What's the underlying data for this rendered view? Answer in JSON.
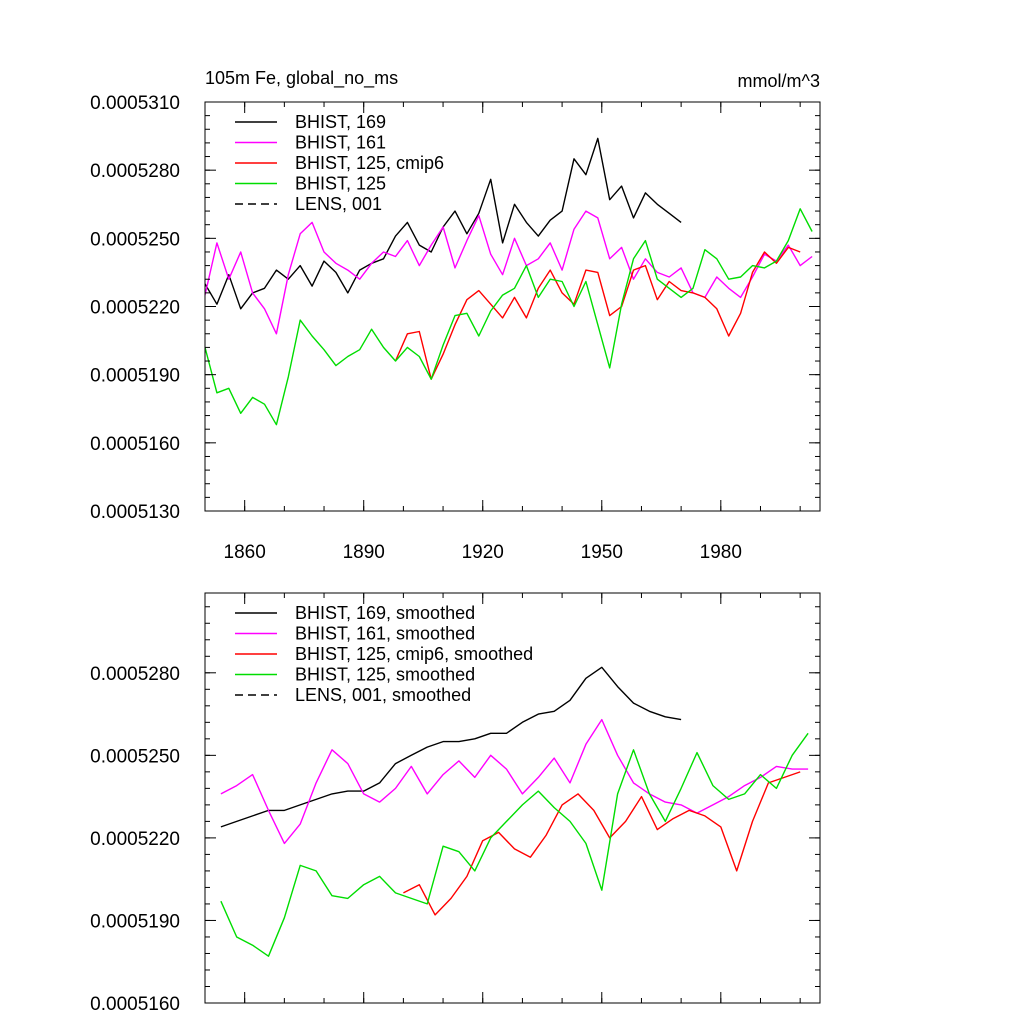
{
  "figure": {
    "background": "#ffffff"
  },
  "chart_data": [
    {
      "type": "line",
      "title": "105m Fe, global_no_ms",
      "units": "mmol/m^3",
      "xlabel": "",
      "ylabel": "",
      "xlim": [
        1850,
        2005
      ],
      "ylim": [
        0.000513,
        0.000531
      ],
      "yticks": [
        0.000513,
        0.000516,
        0.000519,
        0.000522,
        0.000525,
        0.000528,
        0.000531
      ],
      "ytick_labels": [
        "0.0005130",
        "0.0005160",
        "0.0005190",
        "0.0005220",
        "0.0005250",
        "0.0005280",
        "0.0005310"
      ],
      "xticks": [
        1860,
        1890,
        1920,
        1950,
        1980
      ],
      "xtick_labels": [
        "1860",
        "1890",
        "1920",
        "1950",
        "1980"
      ],
      "legend_position": "top-left",
      "series": [
        {
          "name": "BHIST, 169",
          "color": "#000000",
          "dash": "solid",
          "x": [
            1850,
            1853,
            1856,
            1859,
            1862,
            1865,
            1868,
            1871,
            1874,
            1877,
            1880,
            1883,
            1886,
            1889,
            1892,
            1895,
            1898,
            1901,
            1904,
            1907,
            1910,
            1913,
            1916,
            1919,
            1922,
            1925,
            1928,
            1931,
            1934,
            1937,
            1940,
            1943,
            1946,
            1949,
            1952,
            1955,
            1958,
            1961,
            1964,
            1967,
            1970
          ],
          "values": [
            0.000523,
            0.0005221,
            0.0005234,
            0.0005219,
            0.0005226,
            0.0005228,
            0.0005236,
            0.0005232,
            0.0005238,
            0.0005229,
            0.000524,
            0.0005235,
            0.0005226,
            0.0005236,
            0.0005239,
            0.0005241,
            0.0005251,
            0.0005257,
            0.0005247,
            0.0005244,
            0.0005255,
            0.0005262,
            0.0005252,
            0.0005261,
            0.0005276,
            0.0005248,
            0.0005265,
            0.0005257,
            0.0005251,
            0.0005258,
            0.0005262,
            0.0005285,
            0.0005278,
            0.0005294,
            0.0005267,
            0.0005273,
            0.0005259,
            0.000527,
            0.0005265,
            0.0005261,
            0.0005257
          ]
        },
        {
          "name": "BHIST, 161",
          "color": "#ff00ff",
          "dash": "solid",
          "x": [
            1850,
            1853,
            1856,
            1859,
            1862,
            1865,
            1868,
            1871,
            1874,
            1877,
            1880,
            1883,
            1886,
            1889,
            1892,
            1895,
            1898,
            1901,
            1904,
            1907,
            1910,
            1913,
            1916,
            1919,
            1922,
            1925,
            1928,
            1931,
            1934,
            1937,
            1940,
            1943,
            1946,
            1949,
            1952,
            1955,
            1958,
            1961,
            1964,
            1967,
            1970,
            1973,
            1976,
            1979,
            1982,
            1985,
            1988,
            1991,
            1994,
            1997,
            2000,
            2003
          ],
          "values": [
            0.0005225,
            0.0005248,
            0.0005232,
            0.0005244,
            0.0005226,
            0.0005219,
            0.0005208,
            0.0005234,
            0.0005252,
            0.0005257,
            0.0005244,
            0.0005239,
            0.0005236,
            0.0005232,
            0.0005239,
            0.0005244,
            0.0005242,
            0.0005249,
            0.0005238,
            0.0005247,
            0.0005255,
            0.0005237,
            0.0005249,
            0.000526,
            0.0005243,
            0.0005234,
            0.000525,
            0.0005238,
            0.0005241,
            0.0005248,
            0.0005236,
            0.0005254,
            0.0005262,
            0.0005259,
            0.0005241,
            0.0005246,
            0.0005232,
            0.0005241,
            0.0005235,
            0.0005233,
            0.0005237,
            0.0005226,
            0.0005224,
            0.0005233,
            0.0005228,
            0.0005224,
            0.0005233,
            0.0005243,
            0.000524,
            0.0005247,
            0.0005238,
            0.0005242
          ]
        },
        {
          "name": "BHIST, 125, cmip6",
          "color": "#ff0000",
          "dash": "solid",
          "x": [
            1898,
            1901,
            1904,
            1907,
            1910,
            1913,
            1916,
            1919,
            1922,
            1925,
            1928,
            1931,
            1934,
            1937,
            1940,
            1943,
            1946,
            1949,
            1952,
            1955,
            1958,
            1961,
            1964,
            1967,
            1970,
            1973,
            1976,
            1979,
            1982,
            1985,
            1988,
            1991,
            1994,
            1997,
            2000
          ],
          "values": [
            0.0005196,
            0.0005208,
            0.0005209,
            0.0005188,
            0.0005199,
            0.0005212,
            0.0005223,
            0.0005227,
            0.0005221,
            0.0005215,
            0.0005224,
            0.0005215,
            0.0005228,
            0.0005236,
            0.0005226,
            0.0005221,
            0.0005236,
            0.0005235,
            0.0005216,
            0.000522,
            0.0005236,
            0.0005238,
            0.0005223,
            0.0005231,
            0.0005227,
            0.0005226,
            0.0005224,
            0.0005219,
            0.0005207,
            0.0005217,
            0.0005235,
            0.0005244,
            0.0005239,
            0.0005246,
            0.0005244
          ]
        },
        {
          "name": "BHIST, 125",
          "color": "#00dd00",
          "dash": "solid",
          "x": [
            1850,
            1853,
            1856,
            1859,
            1862,
            1865,
            1868,
            1871,
            1874,
            1877,
            1880,
            1883,
            1886,
            1889,
            1892,
            1895,
            1898,
            1901,
            1904,
            1907,
            1910,
            1913,
            1916,
            1919,
            1922,
            1925,
            1928,
            1931,
            1934,
            1937,
            1940,
            1943,
            1946,
            1949,
            1952,
            1955,
            1958,
            1961,
            1964,
            1967,
            1970,
            1973,
            1976,
            1979,
            1982,
            1985,
            1988,
            1991,
            1994,
            1997,
            2000,
            2003
          ],
          "values": [
            0.0005202,
            0.0005182,
            0.0005184,
            0.0005173,
            0.000518,
            0.0005177,
            0.0005168,
            0.0005189,
            0.0005214,
            0.0005207,
            0.0005201,
            0.0005194,
            0.0005198,
            0.0005201,
            0.000521,
            0.0005202,
            0.0005196,
            0.0005202,
            0.0005198,
            0.0005188,
            0.0005203,
            0.0005216,
            0.0005217,
            0.0005207,
            0.0005218,
            0.0005225,
            0.0005228,
            0.0005238,
            0.0005224,
            0.0005232,
            0.0005231,
            0.000522,
            0.0005231,
            0.0005212,
            0.0005193,
            0.0005221,
            0.0005241,
            0.0005249,
            0.0005232,
            0.0005228,
            0.0005224,
            0.0005228,
            0.0005245,
            0.0005241,
            0.0005232,
            0.0005233,
            0.0005238,
            0.0005237,
            0.000524,
            0.0005249,
            0.0005263,
            0.0005253
          ]
        },
        {
          "name": "LENS, 001",
          "color": "#000000",
          "dash": "dashed",
          "x": [],
          "values": []
        }
      ]
    },
    {
      "type": "line",
      "title": "",
      "xlabel": "",
      "ylabel": "",
      "xlim": [
        1850,
        2005
      ],
      "ylim": [
        0.000516,
        0.0005309
      ],
      "yticks": [
        0.000516,
        0.000519,
        0.000522,
        0.000525,
        0.000528
      ],
      "ytick_labels": [
        "0.0005160",
        "0.0005190",
        "0.0005220",
        "0.0005250",
        "0.0005280"
      ],
      "xticks": [
        1860,
        1890,
        1920,
        1950,
        1980
      ],
      "xtick_labels": [],
      "legend_position": "top-left",
      "series": [
        {
          "name": "BHIST, 169, smoothed",
          "color": "#000000",
          "dash": "solid",
          "x": [
            1854,
            1858,
            1862,
            1866,
            1870,
            1874,
            1878,
            1882,
            1886,
            1890,
            1894,
            1898,
            1902,
            1906,
            1910,
            1914,
            1918,
            1922,
            1926,
            1930,
            1934,
            1938,
            1942,
            1946,
            1950,
            1954,
            1958,
            1962,
            1966,
            1970
          ],
          "values": [
            0.0005224,
            0.0005226,
            0.0005228,
            0.000523,
            0.000523,
            0.0005232,
            0.0005234,
            0.0005236,
            0.0005237,
            0.0005237,
            0.000524,
            0.0005247,
            0.000525,
            0.0005253,
            0.0005255,
            0.0005255,
            0.0005256,
            0.0005258,
            0.0005258,
            0.0005262,
            0.0005265,
            0.0005266,
            0.000527,
            0.0005278,
            0.0005282,
            0.0005275,
            0.0005269,
            0.0005266,
            0.0005264,
            0.0005263
          ]
        },
        {
          "name": "BHIST, 161, smoothed",
          "color": "#ff00ff",
          "dash": "solid",
          "x": [
            1854,
            1858,
            1862,
            1866,
            1870,
            1874,
            1878,
            1882,
            1886,
            1890,
            1894,
            1898,
            1902,
            1906,
            1910,
            1914,
            1918,
            1922,
            1926,
            1930,
            1934,
            1938,
            1942,
            1946,
            1950,
            1954,
            1958,
            1962,
            1966,
            1970,
            1974,
            1978,
            1982,
            1986,
            1990,
            1994,
            1998,
            2002
          ],
          "values": [
            0.0005236,
            0.0005239,
            0.0005243,
            0.000523,
            0.0005218,
            0.0005225,
            0.000524,
            0.0005252,
            0.0005247,
            0.0005236,
            0.0005233,
            0.0005238,
            0.0005246,
            0.0005236,
            0.0005243,
            0.0005248,
            0.0005242,
            0.000525,
            0.0005245,
            0.0005236,
            0.0005242,
            0.0005249,
            0.000524,
            0.0005254,
            0.0005263,
            0.000525,
            0.000524,
            0.0005236,
            0.0005233,
            0.0005232,
            0.0005229,
            0.0005232,
            0.0005235,
            0.0005239,
            0.0005242,
            0.0005246,
            0.0005245,
            0.0005245
          ]
        },
        {
          "name": "BHIST, 125, cmip6, smoothed",
          "color": "#ff0000",
          "dash": "solid",
          "x": [
            1900,
            1904,
            1908,
            1912,
            1916,
            1920,
            1924,
            1928,
            1932,
            1936,
            1940,
            1944,
            1948,
            1952,
            1956,
            1960,
            1964,
            1968,
            1972,
            1976,
            1980,
            1984,
            1988,
            1992,
            1996,
            2000
          ],
          "values": [
            0.00052,
            0.0005203,
            0.0005192,
            0.0005198,
            0.0005206,
            0.0005219,
            0.0005222,
            0.0005216,
            0.0005213,
            0.0005221,
            0.0005232,
            0.0005236,
            0.000523,
            0.000522,
            0.0005226,
            0.0005235,
            0.0005223,
            0.0005227,
            0.000523,
            0.0005228,
            0.0005224,
            0.0005208,
            0.0005226,
            0.000524,
            0.0005242,
            0.0005244
          ]
        },
        {
          "name": "BHIST, 125, smoothed",
          "color": "#00dd00",
          "dash": "solid",
          "x": [
            1854,
            1858,
            1862,
            1866,
            1870,
            1874,
            1878,
            1882,
            1886,
            1890,
            1894,
            1898,
            1902,
            1906,
            1910,
            1914,
            1918,
            1922,
            1926,
            1930,
            1934,
            1938,
            1942,
            1946,
            1950,
            1954,
            1958,
            1962,
            1966,
            1970,
            1974,
            1978,
            1982,
            1986,
            1990,
            1994,
            1998,
            2002
          ],
          "values": [
            0.0005197,
            0.0005184,
            0.0005181,
            0.0005177,
            0.0005191,
            0.000521,
            0.0005208,
            0.0005199,
            0.0005198,
            0.0005203,
            0.0005206,
            0.00052,
            0.0005198,
            0.0005196,
            0.0005217,
            0.0005215,
            0.0005208,
            0.000522,
            0.0005226,
            0.0005232,
            0.0005237,
            0.0005231,
            0.0005226,
            0.0005218,
            0.0005201,
            0.0005236,
            0.0005252,
            0.0005236,
            0.0005226,
            0.0005238,
            0.0005251,
            0.0005239,
            0.0005234,
            0.0005236,
            0.0005243,
            0.0005238,
            0.000525,
            0.0005258
          ]
        },
        {
          "name": "LENS, 001, smoothed",
          "color": "#000000",
          "dash": "dashed",
          "x": [],
          "values": []
        }
      ]
    }
  ]
}
